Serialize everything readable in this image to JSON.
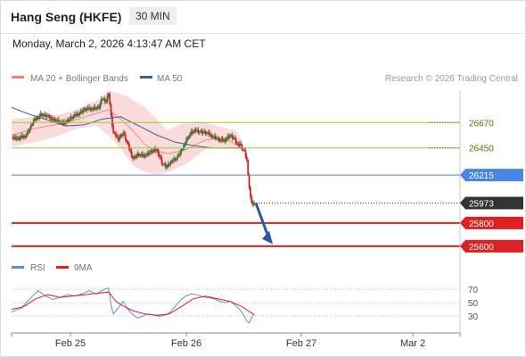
{
  "header": {
    "instrument": "Hang Seng (HKFE)",
    "timeframe": "30 MIN",
    "datetime": "Monday, March 2, 2026 4:13:47 AM CET"
  },
  "legend": {
    "bb_label": "MA 20 + Bollinger Bands",
    "ma50_label": "MA 50",
    "copyright": "Research © 2026 Trading Central",
    "rsi_label": "RSI",
    "rsi_ma_label": "9MA"
  },
  "colors": {
    "bb_legend": "#f08080",
    "ma50": "#3d5f9a",
    "band_fill": "#fadcdc",
    "candle_up": "#2e7d32",
    "candle_down": "#c62828",
    "resistance": "#9acd32",
    "pivot": "#4a86e8",
    "support": "#e02020",
    "last_price": "#333333",
    "arrow": "#2a5a9e",
    "rsi": "#5b8fd9",
    "rsi_ma": "#e02020"
  },
  "chart_data": [
    {
      "type": "candlestick",
      "title": "Hang Seng (HKFE) 30 MIN",
      "x_labels": [
        "Feb 25",
        "Feb 26",
        "Feb 27",
        "Mar 2"
      ],
      "y_range": [
        25560,
        26950
      ],
      "levels": [
        {
          "label": "26670",
          "value": 26670,
          "kind": "resistance"
        },
        {
          "label": "26450",
          "value": 26450,
          "kind": "resistance"
        },
        {
          "label": "26215",
          "value": 26215,
          "kind": "pivot"
        },
        {
          "label": "25973",
          "value": 25973,
          "kind": "last"
        },
        {
          "label": "25800",
          "value": 25800,
          "kind": "support"
        },
        {
          "label": "25600",
          "value": 25600,
          "kind": "support"
        }
      ],
      "last_price": 25973,
      "close_path": [
        [
          0,
          26540
        ],
        [
          6,
          26530
        ],
        [
          12,
          26560
        ],
        [
          18,
          26680
        ],
        [
          24,
          26740
        ],
        [
          30,
          26720
        ],
        [
          36,
          26690
        ],
        [
          42,
          26660
        ],
        [
          48,
          26700
        ],
        [
          54,
          26740
        ],
        [
          60,
          26780
        ],
        [
          66,
          26790
        ],
        [
          72,
          26800
        ],
        [
          75,
          26880
        ],
        [
          78,
          26850
        ],
        [
          80,
          26930
        ],
        [
          82,
          26720
        ],
        [
          84,
          26580
        ],
        [
          88,
          26530
        ],
        [
          92,
          26580
        ],
        [
          96,
          26470
        ],
        [
          100,
          26360
        ],
        [
          104,
          26390
        ],
        [
          108,
          26380
        ],
        [
          112,
          26400
        ],
        [
          116,
          26420
        ],
        [
          120,
          26430
        ],
        [
          124,
          26320
        ],
        [
          128,
          26280
        ],
        [
          132,
          26340
        ],
        [
          136,
          26360
        ],
        [
          140,
          26420
        ],
        [
          144,
          26520
        ],
        [
          148,
          26580
        ],
        [
          152,
          26600
        ],
        [
          156,
          26590
        ],
        [
          160,
          26580
        ],
        [
          164,
          26560
        ],
        [
          168,
          26540
        ],
        [
          172,
          26510
        ],
        [
          176,
          26520
        ],
        [
          180,
          26560
        ],
        [
          184,
          26520
        ],
        [
          186,
          26480
        ],
        [
          188,
          26490
        ],
        [
          190,
          26450
        ],
        [
          192,
          26420
        ],
        [
          194,
          26340
        ],
        [
          195,
          26200
        ],
        [
          197,
          26020
        ],
        [
          199,
          25960
        ],
        [
          200,
          25973
        ]
      ],
      "bollinger_bands": {
        "upper": [
          [
            0,
            26700
          ],
          [
            20,
            26720
          ],
          [
            40,
            26740
          ],
          [
            55,
            26790
          ],
          [
            70,
            26860
          ],
          [
            80,
            26950
          ],
          [
            95,
            26900
          ],
          [
            110,
            26800
          ],
          [
            120,
            26700
          ],
          [
            128,
            26600
          ],
          [
            140,
            26660
          ],
          [
            155,
            26680
          ],
          [
            170,
            26640
          ],
          [
            185,
            26600
          ],
          [
            190,
            26520
          ]
        ],
        "middle": [
          [
            0,
            26560
          ],
          [
            20,
            26620
          ],
          [
            40,
            26660
          ],
          [
            55,
            26700
          ],
          [
            70,
            26750
          ],
          [
            80,
            26780
          ],
          [
            90,
            26700
          ],
          [
            100,
            26600
          ],
          [
            110,
            26480
          ],
          [
            120,
            26420
          ],
          [
            130,
            26400
          ],
          [
            145,
            26440
          ],
          [
            160,
            26520
          ],
          [
            175,
            26540
          ],
          [
            190,
            26450
          ]
        ],
        "lower": [
          [
            0,
            26460
          ],
          [
            20,
            26500
          ],
          [
            40,
            26560
          ],
          [
            55,
            26620
          ],
          [
            70,
            26640
          ],
          [
            80,
            26560
          ],
          [
            90,
            26440
          ],
          [
            100,
            26300
          ],
          [
            110,
            26240
          ],
          [
            120,
            26220
          ],
          [
            130,
            26240
          ],
          [
            145,
            26320
          ],
          [
            160,
            26440
          ],
          [
            175,
            26460
          ],
          [
            190,
            26430
          ]
        ]
      },
      "ma50": [
        [
          0,
          26800
        ],
        [
          15,
          26740
        ],
        [
          30,
          26690
        ],
        [
          45,
          26640
        ],
        [
          60,
          26650
        ],
        [
          75,
          26700
        ],
        [
          90,
          26720
        ],
        [
          105,
          26640
        ],
        [
          120,
          26560
        ],
        [
          135,
          26500
        ],
        [
          150,
          26470
        ],
        [
          165,
          26450
        ],
        [
          180,
          26450
        ],
        [
          190,
          26450
        ]
      ],
      "projection": {
        "from": [
          200,
          25973
        ],
        "to": [
          214,
          25640
        ]
      }
    },
    {
      "type": "line",
      "title": "RSI",
      "y_ticks": [
        70,
        50,
        30
      ],
      "y_range": [
        10,
        85
      ],
      "series": [
        {
          "name": "RSI",
          "values": [
            [
              0,
              36
            ],
            [
              8,
              42
            ],
            [
              16,
              58
            ],
            [
              22,
              68
            ],
            [
              28,
              60
            ],
            [
              34,
              55
            ],
            [
              40,
              58
            ],
            [
              46,
              62
            ],
            [
              52,
              60
            ],
            [
              58,
              63
            ],
            [
              64,
              68
            ],
            [
              70,
              63
            ],
            [
              76,
              70
            ],
            [
              80,
              72
            ],
            [
              82,
              47
            ],
            [
              84,
              33
            ],
            [
              88,
              42
            ],
            [
              92,
              52
            ],
            [
              96,
              40
            ],
            [
              100,
              32
            ],
            [
              104,
              27
            ],
            [
              108,
              30
            ],
            [
              112,
              33
            ],
            [
              116,
              32
            ],
            [
              120,
              30
            ],
            [
              124,
              30
            ],
            [
              128,
              32
            ],
            [
              132,
              38
            ],
            [
              136,
              47
            ],
            [
              140,
              55
            ],
            [
              144,
              60
            ],
            [
              148,
              63
            ],
            [
              152,
              62
            ],
            [
              156,
              60
            ],
            [
              160,
              58
            ],
            [
              164,
              57
            ],
            [
              168,
              55
            ],
            [
              172,
              52
            ],
            [
              176,
              50
            ],
            [
              180,
              52
            ],
            [
              184,
              47
            ],
            [
              188,
              40
            ],
            [
              192,
              30
            ],
            [
              194,
              22
            ],
            [
              196,
              20
            ],
            [
              198,
              28
            ],
            [
              200,
              33
            ]
          ]
        },
        {
          "name": "9MA",
          "values": [
            [
              0,
              40
            ],
            [
              10,
              44
            ],
            [
              20,
              56
            ],
            [
              30,
              62
            ],
            [
              40,
              58
            ],
            [
              50,
              60
            ],
            [
              60,
              62
            ],
            [
              70,
              64
            ],
            [
              80,
              66
            ],
            [
              86,
              52
            ],
            [
              92,
              45
            ],
            [
              100,
              38
            ],
            [
              110,
              33
            ],
            [
              120,
              31
            ],
            [
              130,
              33
            ],
            [
              140,
              44
            ],
            [
              150,
              56
            ],
            [
              160,
              60
            ],
            [
              170,
              56
            ],
            [
              180,
              52
            ],
            [
              190,
              44
            ],
            [
              200,
              32
            ]
          ]
        }
      ]
    }
  ]
}
